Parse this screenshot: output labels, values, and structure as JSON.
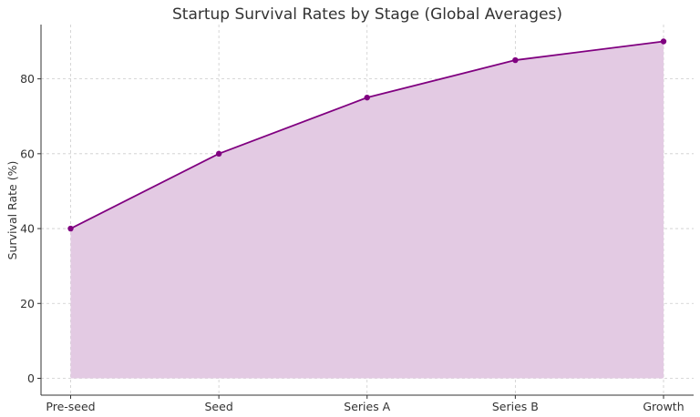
{
  "chart_data": {
    "type": "area",
    "title": "Startup Survival Rates by Stage (Global Averages)",
    "xlabel": "",
    "ylabel": "Survival Rate (%)",
    "categories": [
      "Pre-seed",
      "Seed",
      "Series A",
      "Series B",
      "Growth"
    ],
    "series": [
      {
        "values": [
          40,
          60,
          75,
          85,
          90
        ],
        "line_color": "#800080",
        "fill_color": "#e3cae3"
      }
    ],
    "yticks": [
      0,
      20,
      40,
      60,
      80
    ],
    "ytick_labels": [
      "0",
      "20",
      "40",
      "60",
      "80"
    ],
    "ylim": [
      -4.5,
      94.5
    ],
    "grid": true,
    "markers": true
  }
}
